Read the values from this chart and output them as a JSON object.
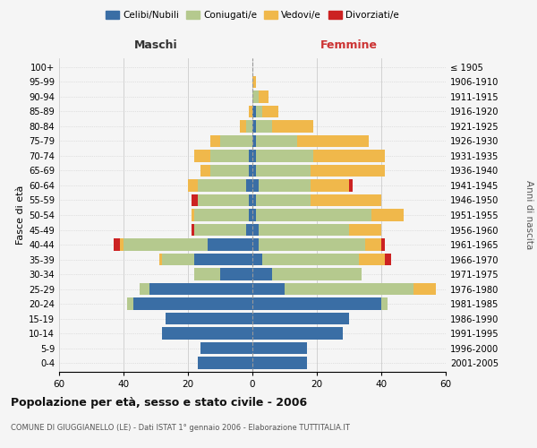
{
  "age_groups": [
    "0-4",
    "5-9",
    "10-14",
    "15-19",
    "20-24",
    "25-29",
    "30-34",
    "35-39",
    "40-44",
    "45-49",
    "50-54",
    "55-59",
    "60-64",
    "65-69",
    "70-74",
    "75-79",
    "80-84",
    "85-89",
    "90-94",
    "95-99",
    "100+"
  ],
  "birth_years": [
    "2001-2005",
    "1996-2000",
    "1991-1995",
    "1986-1990",
    "1981-1985",
    "1976-1980",
    "1971-1975",
    "1966-1970",
    "1961-1965",
    "1956-1960",
    "1951-1955",
    "1946-1950",
    "1941-1945",
    "1936-1940",
    "1931-1935",
    "1926-1930",
    "1921-1925",
    "1916-1920",
    "1911-1915",
    "1906-1910",
    "≤ 1905"
  ],
  "males": {
    "celibi": [
      17,
      16,
      28,
      27,
      37,
      32,
      10,
      18,
      14,
      2,
      1,
      1,
      2,
      1,
      1,
      0,
      0,
      0,
      0,
      0,
      0
    ],
    "coniugati": [
      0,
      0,
      0,
      0,
      2,
      3,
      8,
      10,
      26,
      16,
      17,
      16,
      15,
      12,
      12,
      10,
      2,
      0,
      0,
      0,
      0
    ],
    "vedovi": [
      0,
      0,
      0,
      0,
      0,
      0,
      0,
      1,
      1,
      0,
      1,
      0,
      3,
      3,
      5,
      3,
      2,
      1,
      0,
      0,
      0
    ],
    "divorziati": [
      0,
      0,
      0,
      0,
      0,
      0,
      0,
      0,
      2,
      1,
      0,
      2,
      0,
      0,
      0,
      0,
      0,
      0,
      0,
      0,
      0
    ]
  },
  "females": {
    "nubili": [
      17,
      17,
      28,
      30,
      40,
      10,
      6,
      3,
      2,
      2,
      1,
      1,
      2,
      1,
      1,
      1,
      1,
      1,
      0,
      0,
      0
    ],
    "coniugate": [
      0,
      0,
      0,
      0,
      2,
      40,
      28,
      30,
      33,
      28,
      36,
      17,
      16,
      17,
      18,
      13,
      5,
      2,
      2,
      0,
      0
    ],
    "vedove": [
      0,
      0,
      0,
      0,
      0,
      7,
      0,
      8,
      5,
      10,
      10,
      22,
      12,
      23,
      22,
      22,
      13,
      5,
      3,
      1,
      0
    ],
    "divorziate": [
      0,
      0,
      0,
      0,
      0,
      0,
      0,
      2,
      1,
      0,
      0,
      0,
      1,
      0,
      0,
      0,
      0,
      0,
      0,
      0,
      0
    ]
  },
  "colors": {
    "celibi": "#3a6ea5",
    "coniugati": "#b5c98e",
    "vedovi": "#f0b84b",
    "divorziati": "#cc2222"
  },
  "title": "Popolazione per età, sesso e stato civile - 2006",
  "subtitle": "COMUNE DI GIUGGIANELLO (LE) - Dati ISTAT 1° gennaio 2006 - Elaborazione TUTTITALIA.IT",
  "xlabel_left": "Maschi",
  "xlabel_right": "Femmine",
  "ylabel_left": "Fasce di età",
  "ylabel_right": "Anni di nascita",
  "xlim": 60,
  "background_color": "#f5f5f5",
  "grid_color": "#cccccc"
}
